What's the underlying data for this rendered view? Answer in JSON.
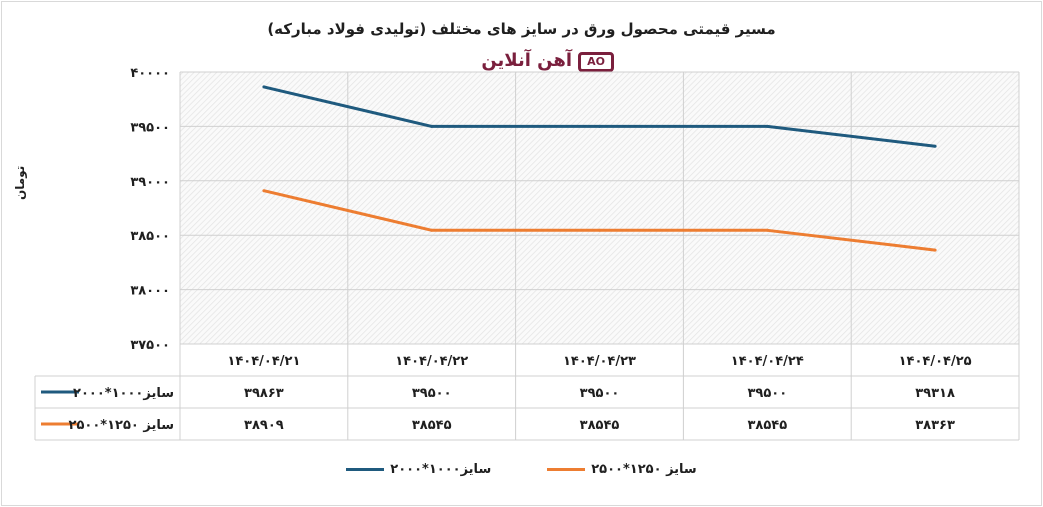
{
  "chart_data": {
    "type": "line",
    "title": "مسیر قیمتی محصول ورق در سایز های مختلف (تولیدی فولاد مبارکه)",
    "ylabel": "تومان",
    "ylim": [
      37500,
      40000
    ],
    "yticks": [
      40000,
      39500,
      39000,
      38500,
      38000,
      37500
    ],
    "ytick_labels": [
      "۴۰۰۰۰",
      "۳۹۵۰۰",
      "۳۹۰۰۰",
      "۳۸۵۰۰",
      "۳۸۰۰۰",
      "۳۷۵۰۰"
    ],
    "categories": [
      "۱۴۰۴/۰۴/۲۱",
      "۱۴۰۴/۰۴/۲۲",
      "۱۴۰۴/۰۴/۲۳",
      "۱۴۰۴/۰۴/۲۴",
      "۱۴۰۴/۰۴/۲۵"
    ],
    "series": [
      {
        "name": "سایز۱۰۰۰*۲۰۰۰",
        "color": "#1f5a7e",
        "values": [
          39863,
          39500,
          39500,
          39500,
          39318
        ],
        "value_labels": [
          "۳۹۸۶۳",
          "۳۹۵۰۰",
          "۳۹۵۰۰",
          "۳۹۵۰۰",
          "۳۹۳۱۸"
        ]
      },
      {
        "name": "سایز ۱۲۵۰*۲۵۰۰",
        "color": "#ed7d31",
        "values": [
          38909,
          38545,
          38545,
          38545,
          38363
        ],
        "value_labels": [
          "۳۸۹۰۹",
          "۳۸۵۴۵",
          "۳۸۵۴۵",
          "۳۸۵۴۵",
          "۳۸۳۶۳"
        ]
      }
    ],
    "grid": true,
    "legend": "bottom",
    "data_table": true
  },
  "logo": {
    "text": "آهن آنلاین",
    "mark": "AO"
  }
}
